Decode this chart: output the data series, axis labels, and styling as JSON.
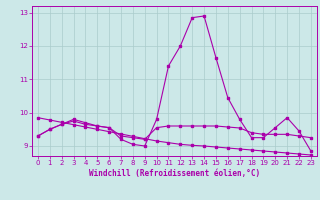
{
  "x": [
    0,
    1,
    2,
    3,
    4,
    5,
    6,
    7,
    8,
    9,
    10,
    11,
    12,
    13,
    14,
    15,
    16,
    17,
    18,
    19,
    20,
    21,
    22,
    23
  ],
  "y_main": [
    9.3,
    9.5,
    9.65,
    9.8,
    9.7,
    9.6,
    9.55,
    9.2,
    9.05,
    9.0,
    9.8,
    11.4,
    12.0,
    12.85,
    12.9,
    11.65,
    10.45,
    9.8,
    9.25,
    9.25,
    9.55,
    9.85,
    9.45,
    8.85
  ],
  "y_trend": [
    9.85,
    9.78,
    9.71,
    9.64,
    9.57,
    9.5,
    9.43,
    9.36,
    9.29,
    9.22,
    9.15,
    9.1,
    9.05,
    9.02,
    9.0,
    8.97,
    8.94,
    8.91,
    8.88,
    8.85,
    8.82,
    8.79,
    8.76,
    8.73
  ],
  "y_flat": [
    9.3,
    9.5,
    9.65,
    9.75,
    9.65,
    9.6,
    9.55,
    9.3,
    9.25,
    9.2,
    9.55,
    9.6,
    9.6,
    9.6,
    9.6,
    9.6,
    9.57,
    9.54,
    9.4,
    9.35,
    9.35,
    9.35,
    9.3,
    9.25
  ],
  "line_color": "#aa00aa",
  "bg_color": "#cce8e8",
  "grid_color": "#aacccc",
  "xlabel": "Windchill (Refroidissement éolien,°C)",
  "ylim": [
    8.7,
    13.2
  ],
  "xlim": [
    -0.5,
    23.5
  ],
  "yticks": [
    9,
    10,
    11,
    12,
    13
  ],
  "xticks": [
    0,
    1,
    2,
    3,
    4,
    5,
    6,
    7,
    8,
    9,
    10,
    11,
    12,
    13,
    14,
    15,
    16,
    17,
    18,
    19,
    20,
    21,
    22,
    23
  ]
}
